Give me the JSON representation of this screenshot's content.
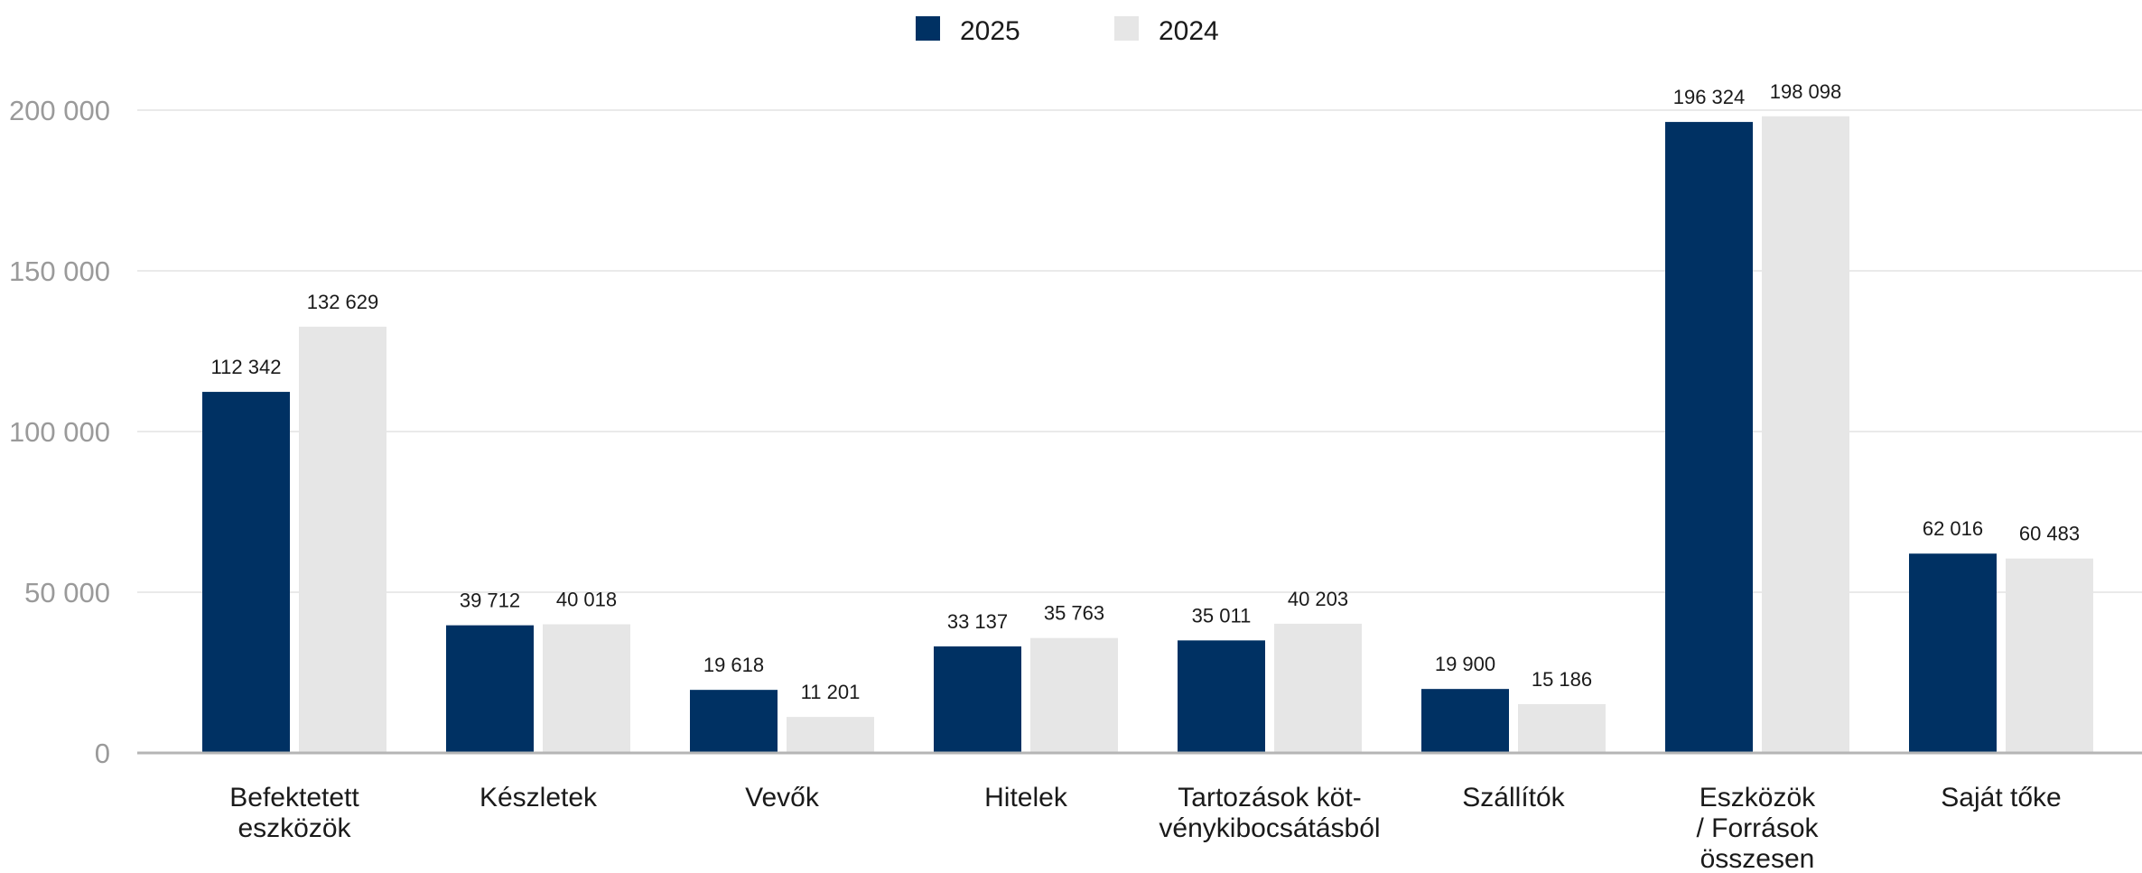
{
  "chart_data": {
    "type": "bar",
    "title": "",
    "xlabel": "",
    "ylabel": "",
    "ylim": [
      0,
      200000
    ],
    "yticks": [
      0,
      50000,
      100000,
      150000,
      200000
    ],
    "ytick_labels": [
      "0",
      "50 000",
      "100 000",
      "150 000",
      "200 000"
    ],
    "grid": "horizontal",
    "legend_position": "top-center",
    "categories": [
      [
        "Befektetett",
        "eszközök"
      ],
      [
        "Készletek"
      ],
      [
        "Vevők"
      ],
      [
        "Hitelek"
      ],
      [
        "Tartozások köt-",
        "vénykibocsátásból"
      ],
      [
        "Szállítók"
      ],
      [
        "Eszközök",
        "/ Források",
        "összesen"
      ],
      [
        "Saját tőke"
      ]
    ],
    "series": [
      {
        "name": "2025",
        "color": "#003163",
        "values": [
          112342,
          39712,
          19618,
          33137,
          35011,
          19900,
          196324,
          62016
        ],
        "labels": [
          "112 342",
          "39 712",
          "19 618",
          "33 137",
          "35 011",
          "19 900",
          "196 324",
          "62 016"
        ]
      },
      {
        "name": "2024",
        "color": "#e6e6e6",
        "values": [
          132629,
          40018,
          11201,
          35763,
          40203,
          15186,
          198098,
          60483
        ],
        "labels": [
          "132 629",
          "40 018",
          "11 201",
          "35 763",
          "40 203",
          "15 186",
          "198 098",
          "60 483"
        ]
      }
    ]
  }
}
